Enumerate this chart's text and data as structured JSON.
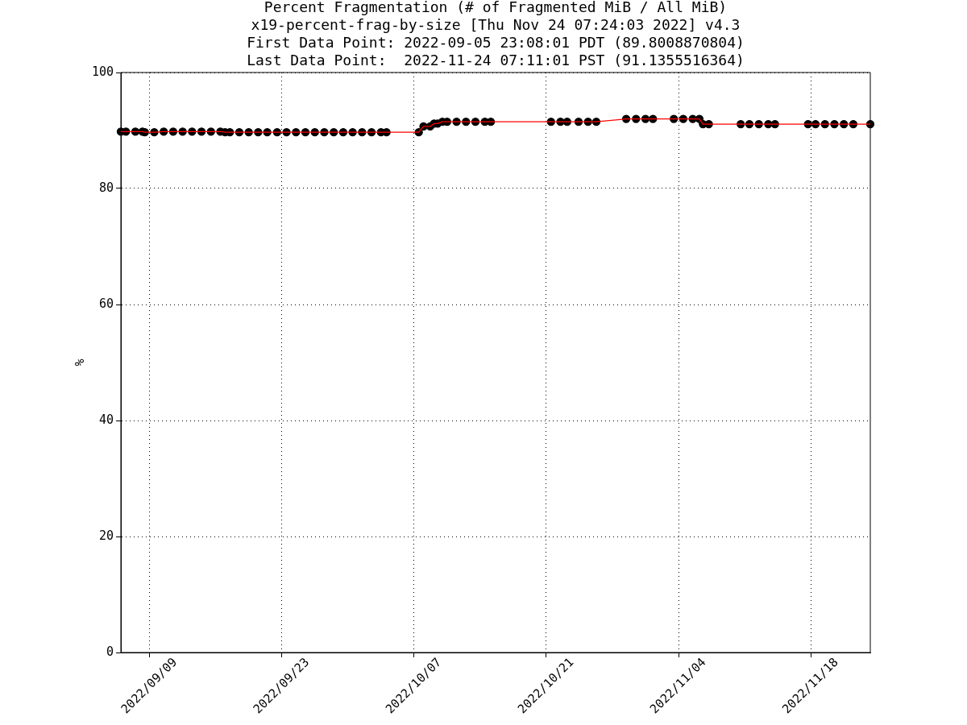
{
  "chart_data": {
    "type": "scatter",
    "title": "Percent Fragmentation (# of Fragmented MiB / All MiB)",
    "subtitle": "x19-percent-frag-by-size [Thu Nov 24 07:24:03 2022] v4.3\nFirst Data Point: 2022-09-05 23:08:01 PDT (89.8008870804)\nLast Data Point:  2022-11-24 07:11:01 PST (91.1355516364)",
    "ylabel": "%",
    "x": [
      "2022-09-05T23:08",
      "2022-09-06T12:00",
      "2022-09-07T12:00",
      "2022-09-08T06:00",
      "2022-09-08T12:00",
      "2022-09-09T12:00",
      "2022-09-10T12:00",
      "2022-09-11T12:00",
      "2022-09-12T12:00",
      "2022-09-13T12:00",
      "2022-09-14T12:00",
      "2022-09-15T12:00",
      "2022-09-16T12:00",
      "2022-09-17T00:00",
      "2022-09-17T12:00",
      "2022-09-18T12:00",
      "2022-09-19T12:00",
      "2022-09-20T12:00",
      "2022-09-21T11:00",
      "2022-09-22T12:00",
      "2022-09-23T12:00",
      "2022-09-24T12:00",
      "2022-09-25T12:00",
      "2022-09-26T12:00",
      "2022-09-27T12:00",
      "2022-09-28T12:00",
      "2022-09-29T12:00",
      "2022-09-30T12:00",
      "2022-10-01T12:00",
      "2022-10-02T12:00",
      "2022-10-03T12:00",
      "2022-10-04T02:00",
      "2022-10-07T12:00",
      "2022-10-08T00:00",
      "2022-10-08T17:00",
      "2022-10-09T03:00",
      "2022-10-09T12:00",
      "2022-10-10T00:00",
      "2022-10-10T12:00",
      "2022-10-11T12:00",
      "2022-10-12T12:00",
      "2022-10-13T12:00",
      "2022-10-14T12:00",
      "2022-10-15T03:00",
      "2022-10-21T12:00",
      "2022-10-22T12:00",
      "2022-10-23T05:00",
      "2022-10-24T10:00",
      "2022-10-25T10:00",
      "2022-10-26T07:00",
      "2022-10-29T11:00",
      "2022-10-30T12:00",
      "2022-10-31T12:00",
      "2022-11-01T07:00",
      "2022-11-03T12:00",
      "2022-11-04T12:00",
      "2022-11-05T12:00",
      "2022-11-06T05:00",
      "2022-11-06T14:00",
      "2022-11-07T05:00",
      "2022-11-10T14:00",
      "2022-11-11T12:00",
      "2022-11-12T12:00",
      "2022-11-13T12:00",
      "2022-11-14T05:00",
      "2022-11-17T17:00",
      "2022-11-18T12:00",
      "2022-11-19T12:00",
      "2022-11-20T12:00",
      "2022-11-21T12:00",
      "2022-11-22T12:00",
      "2022-11-24T07:11"
    ],
    "series": [
      {
        "color": "#000000",
        "values": [
          89.8,
          89.8,
          89.8,
          89.8,
          89.7,
          89.7,
          89.8,
          89.8,
          89.8,
          89.8,
          89.8,
          89.8,
          89.8,
          89.7,
          89.7,
          89.7,
          89.7,
          89.7,
          89.7,
          89.7,
          89.7,
          89.7,
          89.7,
          89.7,
          89.7,
          89.7,
          89.7,
          89.7,
          89.7,
          89.7,
          89.7,
          89.7,
          89.7,
          90.7,
          90.7,
          91.2,
          91.2,
          91.5,
          91.5,
          91.5,
          91.5,
          91.5,
          91.5,
          91.5,
          91.5,
          91.5,
          91.5,
          91.5,
          91.5,
          91.5,
          92.0,
          92.0,
          92.0,
          92.0,
          92.0,
          92.0,
          92.0,
          92.0,
          91.1,
          91.1,
          91.1,
          91.1,
          91.1,
          91.1,
          91.1,
          91.1,
          91.1,
          91.1,
          91.1,
          91.1,
          91.1,
          91.1
        ]
      },
      {
        "type": "line",
        "marker": "none",
        "color": "#ff0000",
        "values": [
          89.8,
          89.8,
          89.8,
          89.8,
          89.7,
          89.7,
          89.8,
          89.8,
          89.8,
          89.8,
          89.8,
          89.8,
          89.8,
          89.7,
          89.7,
          89.7,
          89.7,
          89.7,
          89.7,
          89.7,
          89.7,
          89.7,
          89.7,
          89.7,
          89.7,
          89.7,
          89.7,
          89.7,
          89.7,
          89.7,
          89.7,
          89.7,
          89.7,
          90.7,
          90.7,
          91.2,
          91.2,
          91.5,
          91.5,
          91.5,
          91.5,
          91.5,
          91.5,
          91.5,
          91.5,
          91.5,
          91.5,
          91.5,
          91.5,
          91.5,
          92.0,
          92.0,
          92.0,
          92.0,
          92.0,
          92.0,
          92.0,
          92.0,
          91.1,
          91.1,
          91.1,
          91.1,
          91.1,
          91.1,
          91.1,
          91.1,
          91.1,
          91.1,
          91.1,
          91.1,
          91.1,
          91.1
        ]
      }
    ],
    "xlim": [
      "2022-09-05T23:08",
      "2022-11-24T07:11"
    ],
    "xticks": [
      {
        "value": "2022-09-09",
        "label": "2022/09/09"
      },
      {
        "value": "2022-09-23",
        "label": "2022/09/23"
      },
      {
        "value": "2022-10-07",
        "label": "2022/10/07"
      },
      {
        "value": "2022-10-21",
        "label": "2022/10/21"
      },
      {
        "value": "2022-11-04",
        "label": "2022/11/04"
      },
      {
        "value": "2022-11-18",
        "label": "2022/11/18"
      }
    ],
    "ylim": [
      0,
      100
    ],
    "yticks": [
      0,
      20,
      40,
      60,
      80,
      100
    ],
    "grid": true,
    "legend": false,
    "marker": "circle",
    "line_style": "solid"
  }
}
